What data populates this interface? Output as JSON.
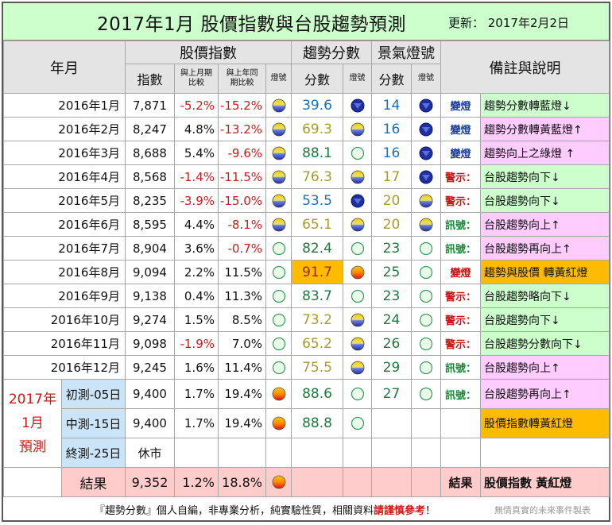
{
  "title": "2017年1月 股價指數與台股趨勢預測",
  "update": "更新： 2017年2月2日",
  "headers": {
    "month": "年月",
    "index_group": "股價指數",
    "index": "指數",
    "mom": "與上月期比較",
    "yoy": "與上年同期比較",
    "light": "燈號",
    "trend_group": "趨勢分數",
    "trend_score": "分數",
    "trend_light": "燈號",
    "climate_group": "景氣燈號",
    "climate_score": "分數",
    "climate_light": "燈號",
    "notes": "備註與說明"
  },
  "rows": [
    {
      "month": "2016年1月",
      "index": "7,871",
      "mom": "-5.2%",
      "yoy": "-15.2%",
      "light": "blue-yellow",
      "score": "39.6",
      "score_color": "blue",
      "score_light": "blue",
      "cscore": "14",
      "cscore_color": "blue",
      "clight": "blue",
      "sig": "變燈",
      "sig_color": "blue",
      "note": "趨勢分數轉藍燈↓",
      "note_bg": "green"
    },
    {
      "month": "2016年2月",
      "index": "8,247",
      "mom": "4.8%",
      "yoy": "-13.2%",
      "light": "blue-yellow",
      "score": "69.3",
      "score_color": "yellow",
      "score_light": "blue-yellow",
      "cscore": "16",
      "cscore_color": "blue",
      "clight": "blue",
      "sig": "變燈",
      "sig_color": "blue",
      "note": "趨勢分數轉黃藍燈↑",
      "note_bg": "pink"
    },
    {
      "month": "2016年3月",
      "index": "8,688",
      "mom": "5.4%",
      "yoy": "-9.6%",
      "light": "blue-yellow",
      "score": "88.1",
      "score_color": "green",
      "score_light": "green",
      "cscore": "16",
      "cscore_color": "blue",
      "clight": "blue",
      "sig": "變燈",
      "sig_color": "blue",
      "note": "趨勢向上之綠燈 ↑",
      "note_bg": "pink"
    },
    {
      "month": "2016年4月",
      "index": "8,568",
      "mom": "-1.4%",
      "yoy": "-11.5%",
      "light": "blue-yellow",
      "score": "76.3",
      "score_color": "yellow",
      "score_light": "blue-yellow",
      "cscore": "17",
      "cscore_color": "yellow",
      "clight": "blue",
      "sig": "警示：",
      "sig_color": "red",
      "note": "台股趨勢向下↓",
      "note_bg": "green"
    },
    {
      "month": "2016年5月",
      "index": "8,235",
      "mom": "-3.9%",
      "yoy": "-15.0%",
      "light": "blue-yellow",
      "score": "53.5",
      "score_color": "blue",
      "score_light": "blue",
      "cscore": "20",
      "cscore_color": "yellow",
      "clight": "blue-yellow",
      "sig": "警示：",
      "sig_color": "red",
      "note": "台股趨勢向下↓",
      "note_bg": "green"
    },
    {
      "month": "2016年6月",
      "index": "8,595",
      "mom": "4.4%",
      "yoy": "-8.1%",
      "light": "blue-yellow",
      "score": "65.1",
      "score_color": "yellow",
      "score_light": "blue-yellow",
      "cscore": "20",
      "cscore_color": "yellow",
      "clight": "blue-yellow",
      "sig": "訊號：",
      "sig_color": "green",
      "note": "台股趨勢向上↑",
      "note_bg": "pink"
    },
    {
      "month": "2016年7月",
      "index": "8,904",
      "mom": "3.6%",
      "yoy": "-0.7%",
      "light": "green",
      "score": "82.4",
      "score_color": "green",
      "score_light": "green",
      "cscore": "23",
      "cscore_color": "green",
      "clight": "green",
      "sig": "訊號：",
      "sig_color": "green",
      "note": "台股趨勢再向上↑",
      "note_bg": "pink"
    },
    {
      "month": "2016年8月",
      "index": "9,094",
      "mom": "2.2%",
      "yoy": "11.5%",
      "light": "green",
      "score": "91.7",
      "score_color": "orange",
      "score_light": "yellow-red",
      "cscore": "25",
      "cscore_color": "green",
      "clight": "green",
      "sig": "變燈",
      "sig_color": "red",
      "note": "趨勢與股價 轉黃紅燈",
      "note_bg": "orange"
    },
    {
      "month": "2016年9月",
      "index": "9,138",
      "mom": "0.4%",
      "yoy": "11.3%",
      "light": "green",
      "score": "83.7",
      "score_color": "green",
      "score_light": "green",
      "cscore": "23",
      "cscore_color": "green",
      "clight": "green",
      "sig": "警示：",
      "sig_color": "red",
      "note": "台股趨勢略向下↓",
      "note_bg": "green"
    },
    {
      "month": "2016年10月",
      "index": "9,274",
      "mom": "1.5%",
      "yoy": "8.5%",
      "light": "green",
      "score": "73.2",
      "score_color": "yellow",
      "score_light": "blue-yellow",
      "cscore": "24",
      "cscore_color": "green",
      "clight": "green",
      "sig": "警示：",
      "sig_color": "red",
      "note": "台股趨勢向下↓",
      "note_bg": "green"
    },
    {
      "month": "2016年11月",
      "index": "9,098",
      "mom": "-1.9%",
      "yoy": "7.0%",
      "light": "green",
      "score": "65.2",
      "score_color": "yellow",
      "score_light": "blue-yellow",
      "cscore": "26",
      "cscore_color": "green",
      "clight": "green",
      "sig": "警示：",
      "sig_color": "red",
      "note": "台股趨勢分數向下↓",
      "note_bg": "green"
    },
    {
      "month": "2016年12月",
      "index": "9,245",
      "mom": "1.6%",
      "yoy": "11.4%",
      "light": "green",
      "score": "75.5",
      "score_color": "yellow",
      "score_light": "blue-yellow",
      "cscore": "29",
      "cscore_color": "green",
      "clight": "green",
      "sig": "訊號：",
      "sig_color": "green",
      "note": "台股趨勢向上↑",
      "note_bg": "pink"
    }
  ],
  "forecast": {
    "label": "2017年\n1月\n預測",
    "rows": [
      {
        "name": "初測-05日",
        "index": "9,400",
        "mom": "1.7%",
        "yoy": "19.4%",
        "light": "yellow-red",
        "score": "88.6",
        "score_light": "green",
        "cscore": "27",
        "clight": "green",
        "sig": "訊號：",
        "note": "台股趨勢再向上↑",
        "note_bg": "pink"
      },
      {
        "name": "中測-15日",
        "index": "9,400",
        "mom": "1.7%",
        "yoy": "19.4%",
        "light": "yellow-red",
        "score": "88.8",
        "score_light": "green",
        "cscore": "",
        "clight": "",
        "sig": "",
        "note": "股價指數轉黃紅燈",
        "note_bg": "orange"
      },
      {
        "name": "終測-25日",
        "index": "休市",
        "mom": "",
        "yoy": "",
        "light": "",
        "score": "",
        "score_light": "",
        "cscore": "",
        "clight": "",
        "sig": "",
        "note": "",
        "note_bg": "none"
      }
    ]
  },
  "result": {
    "label": "結果",
    "index": "9,352",
    "mom": "1.2%",
    "yoy": "18.8%",
    "light": "yellow-red",
    "sig": "結果",
    "note": "股價指數 黃紅燈"
  },
  "footer": {
    "main": "『趨勢分數』個人自編，非專業分析，純實驗性質，相關資料",
    "warn": "請謹慎參考",
    "end": "！",
    "right": "無情真實的未來事件製表"
  }
}
